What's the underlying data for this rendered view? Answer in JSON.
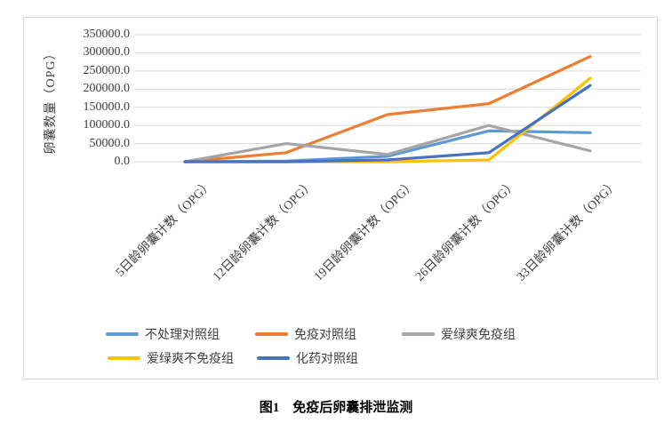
{
  "caption": "图1　免疫后卵囊排泄监测",
  "chart_data": {
    "type": "line",
    "title": "",
    "xlabel": "",
    "ylabel": "卵囊数量（OPG）",
    "ylim": [
      0,
      350000
    ],
    "grid": true,
    "legend_position": "bottom",
    "gridline_color": "#d9d9d9",
    "y_ticks": [
      {
        "value": 0,
        "label": "0.0"
      },
      {
        "value": 50000,
        "label": "50000.0"
      },
      {
        "value": 100000,
        "label": "100000.0"
      },
      {
        "value": 150000,
        "label": "150000.0"
      },
      {
        "value": 200000,
        "label": "200000.0"
      },
      {
        "value": 250000,
        "label": "250000.0"
      },
      {
        "value": 300000,
        "label": "300000.0"
      },
      {
        "value": 350000,
        "label": "350000.0"
      }
    ],
    "categories": [
      "5日龄卵囊计数（OPG）",
      "12日龄卵囊计数（OPG）",
      "19日龄卵囊计数（OPG）",
      "26日龄卵囊计数（OPG）",
      "33日龄卵囊计数（OPG）"
    ],
    "series": [
      {
        "name": "不处理对照组",
        "color": "#5B9BD5",
        "values": [
          0,
          2000,
          15000,
          85000,
          80000
        ]
      },
      {
        "name": "免疫对照组",
        "color": "#ED7D31",
        "values": [
          0,
          25000,
          130000,
          160000,
          290000
        ]
      },
      {
        "name": "爱绿爽免疫组",
        "color": "#A5A5A5",
        "values": [
          0,
          50000,
          20000,
          100000,
          30000
        ]
      },
      {
        "name": "爱绿爽不免疫组",
        "color": "#FFC000",
        "values": [
          0,
          0,
          0,
          5000,
          230000
        ]
      },
      {
        "name": "化药对照组",
        "color": "#4472C4",
        "values": [
          0,
          0,
          5000,
          25000,
          210000
        ]
      }
    ]
  }
}
